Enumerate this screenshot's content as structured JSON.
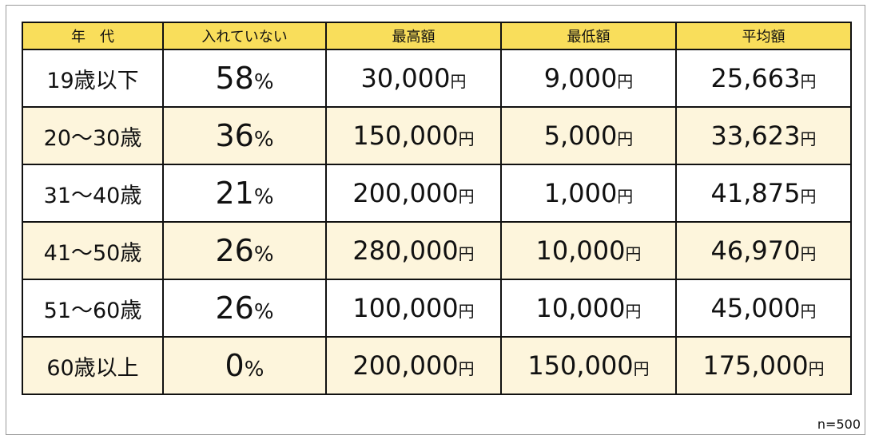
{
  "table": {
    "headers": [
      "年　代",
      "入れていない",
      "最高額",
      "最低額",
      "平均額"
    ],
    "rows": [
      {
        "age": "19歳以下",
        "pct": "58",
        "max": "30,000",
        "min": "9,000",
        "avg": "25,663"
      },
      {
        "age": "20～30歳",
        "pct": "36",
        "max": "150,000",
        "min": "5,000",
        "avg": "33,623"
      },
      {
        "age": "31～40歳",
        "pct": "21",
        "max": "200,000",
        "min": "1,000",
        "avg": "41,875"
      },
      {
        "age": "41～50歳",
        "pct": "26",
        "max": "280,000",
        "min": "10,000",
        "avg": "46,970"
      },
      {
        "age": "51～60歳",
        "pct": "26",
        "max": "100,000",
        "min": "10,000",
        "avg": "45,000"
      },
      {
        "age": "60歳以上",
        "pct": "0",
        "max": "200,000",
        "min": "150,000",
        "avg": "175,000"
      }
    ],
    "percent_sign": "%",
    "currency_unit": "円"
  },
  "note": "n=500",
  "colors": {
    "header_bg": "#f9de5b",
    "alt_row_bg": "#fdf5dc",
    "border": "#111111"
  }
}
